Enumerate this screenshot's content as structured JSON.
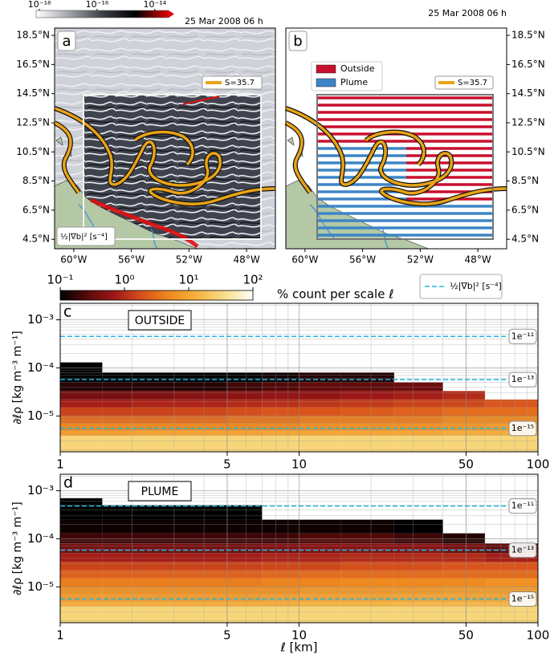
{
  "chart_data": [
    {
      "type": "map",
      "label": "a",
      "timestamp": "25 Mar 2008 06 h",
      "colorbar": {
        "colors": [
          "#ffffff",
          "#a0a4ab",
          "#3c3f46",
          "#000000",
          "#e00000"
        ],
        "lim": [
          7.7e-19,
          3e-14
        ],
        "log": true,
        "ticks": [
          {
            "value": 1e-18,
            "label": "10⁻¹⁸"
          },
          {
            "value": 1e-16,
            "label": "10⁻¹⁶"
          },
          {
            "value": 1e-14,
            "label": "10⁻¹⁴"
          }
        ],
        "label": "½|∇b|² [s⁻⁴]"
      },
      "legend": [
        {
          "name": "S=35.7",
          "color": "#e8a317"
        }
      ],
      "xlim": [
        -61.33,
        -46
      ],
      "ylim": [
        3.85,
        19.0
      ],
      "xticks": [
        {
          "value": -60,
          "label": "60°W"
        },
        {
          "value": -56,
          "label": "56°W"
        },
        {
          "value": -52,
          "label": "52°W"
        },
        {
          "value": -48,
          "label": "48°W"
        }
      ],
      "yticks": [
        {
          "value": 4.5,
          "label": "4.5°N"
        },
        {
          "value": 6.5,
          "label": "6.5°N"
        },
        {
          "value": 8.5,
          "label": "8.5°N"
        },
        {
          "value": 10.5,
          "label": "10.5°N"
        },
        {
          "value": 12.5,
          "label": "12.5°N"
        },
        {
          "value": 14.5,
          "label": "14.5°N"
        },
        {
          "value": 16.5,
          "label": "16.5°N"
        },
        {
          "value": 18.5,
          "label": "18.5°N"
        }
      ]
    },
    {
      "type": "map",
      "label": "b",
      "timestamp": "25 Mar 2008 06 h",
      "legend": [
        {
          "name": "Outside",
          "color": "#c8102e"
        },
        {
          "name": "Plume",
          "color": "#3d85c6"
        },
        {
          "name": "S=35.7",
          "color": "#e8a317"
        }
      ],
      "xlim": [
        -61.33,
        -46
      ],
      "ylim": [
        3.85,
        19.0
      ],
      "xticks": [
        {
          "value": -60,
          "label": "60°W"
        },
        {
          "value": -56,
          "label": "56°W"
        },
        {
          "value": -52,
          "label": "52°W"
        },
        {
          "value": -48,
          "label": "48°W"
        }
      ],
      "yticks": [
        {
          "value": 4.5,
          "label": "4.5°N"
        },
        {
          "value": 6.5,
          "label": "6.5°N"
        },
        {
          "value": 8.5,
          "label": "8.5°N"
        },
        {
          "value": 10.5,
          "label": "10.5°N"
        },
        {
          "value": 12.5,
          "label": "12.5°N"
        },
        {
          "value": 14.5,
          "label": "14.5°N"
        },
        {
          "value": 16.5,
          "label": "16.5°N"
        },
        {
          "value": 18.5,
          "label": "18.5°N"
        }
      ]
    },
    {
      "type": "heatmap",
      "label": "c",
      "title": "OUTSIDE",
      "ylabel": "∂ℓρ [kg m⁻³ m⁻¹]",
      "colorbar": {
        "label": "% count per scale ℓ",
        "lim": [
          0.1,
          100
        ],
        "log": true,
        "colors": [
          "#000000",
          "#5a0a0a",
          "#a01818",
          "#d8531c",
          "#f08c1e",
          "#f5b342",
          "#f7e08a",
          "#ffffff"
        ],
        "ticks": [
          {
            "value": 0.1,
            "label": "10⁻¹"
          },
          {
            "value": 1,
            "label": "10⁰"
          },
          {
            "value": 10,
            "label": "10¹"
          },
          {
            "value": 100,
            "label": "10²"
          }
        ]
      },
      "hline_legend": "½|∇b|² [s⁻⁴]",
      "hline_color": "#1fb5e0",
      "hlines": [
        {
          "value": 0.00045,
          "label": "1e⁻¹¹"
        },
        {
          "value": 5.7e-05,
          "label": "1e⁻¹³"
        },
        {
          "value": 5.5e-06,
          "label": "1e⁻¹⁵"
        }
      ],
      "xlog": true,
      "ylog": true,
      "grid": true,
      "xlim": [
        1,
        100
      ],
      "ylim": [
        1.8e-06,
        0.0022
      ],
      "xticks": [
        1,
        5,
        10,
        50,
        100
      ],
      "yticks": [
        {
          "value": 0.001,
          "label": "10⁻³"
        },
        {
          "value": 0.0001,
          "label": "10⁻⁴"
        },
        {
          "value": 1e-05,
          "label": "10⁻⁵"
        }
      ],
      "x_edges": [
        1,
        1.5,
        2,
        3,
        5,
        7,
        10,
        15,
        25,
        40,
        60,
        100
      ],
      "y_edges": [
        1.8e-06,
        3.9e-06,
        5e-06,
        7e-06,
        1e-05,
        1.5e-05,
        2.2e-05,
        3.3e-05,
        5e-05,
        8e-05,
        0.00013,
        0.00025,
        0.0005,
        0.0007
      ],
      "values": [
        [
          30,
          30,
          30,
          30,
          30,
          30,
          30,
          30,
          30,
          30,
          30
        ],
        [
          8,
          8,
          9,
          9,
          9,
          10,
          10,
          10,
          10,
          12,
          12
        ],
        [
          5,
          5,
          5,
          5,
          5,
          5,
          6,
          6,
          6,
          7,
          8
        ],
        [
          3,
          3,
          3,
          3,
          3.5,
          3.5,
          4,
          4,
          4,
          5,
          5
        ],
        [
          1.5,
          1.5,
          1.5,
          1.6,
          1.8,
          2,
          2,
          2.2,
          2.5,
          3,
          3
        ],
        [
          0.8,
          0.8,
          0.9,
          0.9,
          1,
          1.1,
          1.2,
          1.3,
          1.5,
          1.6,
          2
        ],
        [
          0.4,
          0.4,
          0.45,
          0.5,
          0.55,
          0.6,
          0.6,
          0.7,
          0.8,
          1,
          null
        ],
        [
          0.15,
          0.15,
          0.15,
          0.15,
          0.2,
          0.25,
          0.3,
          0.3,
          0.35,
          null,
          null
        ],
        [
          0.1,
          0.1,
          0.1,
          0.1,
          0.1,
          0.12,
          0.15,
          0.15,
          null,
          null,
          null
        ],
        [
          0.1,
          null,
          null,
          null,
          null,
          null,
          null,
          null,
          null,
          null,
          null
        ],
        [
          null,
          null,
          null,
          null,
          null,
          null,
          null,
          null,
          null,
          null,
          null
        ],
        [
          null,
          null,
          null,
          null,
          null,
          null,
          null,
          null,
          null,
          null,
          null
        ],
        [
          null,
          null,
          null,
          null,
          null,
          null,
          null,
          null,
          null,
          null,
          null
        ]
      ]
    },
    {
      "type": "heatmap",
      "label": "d",
      "title": "PLUME",
      "ylabel": "∂ℓρ [kg m⁻³ m⁻¹]",
      "xlabel": "ℓ [km]",
      "hline_color": "#1fb5e0",
      "hlines": [
        {
          "value": 0.00048,
          "label": "1e⁻¹¹"
        },
        {
          "value": 5.8e-05,
          "label": "1e⁻¹³"
        },
        {
          "value": 5.6e-06,
          "label": "1e⁻¹⁵"
        }
      ],
      "xlog": true,
      "ylog": true,
      "grid": true,
      "xlim": [
        1,
        100
      ],
      "ylim": [
        1.8e-06,
        0.0022
      ],
      "xticks": [
        1,
        5,
        10,
        50,
        100
      ],
      "yticks": [
        {
          "value": 0.001,
          "label": "10⁻³"
        },
        {
          "value": 0.0001,
          "label": "10⁻⁴"
        },
        {
          "value": 1e-05,
          "label": "10⁻⁵"
        }
      ],
      "x_edges": [
        1,
        1.5,
        2,
        3,
        5,
        7,
        10,
        15,
        25,
        40,
        60,
        100
      ],
      "y_edges": [
        1.8e-06,
        3.9e-06,
        5e-06,
        7e-06,
        1e-05,
        1.5e-05,
        2.2e-05,
        3.3e-05,
        5e-05,
        8e-05,
        0.00013,
        0.00025,
        0.0005,
        0.0007
      ],
      "values": [
        [
          30,
          30,
          30,
          30,
          30,
          30,
          30,
          30,
          30,
          30,
          30
        ],
        [
          12,
          12,
          12,
          12,
          12,
          12,
          14,
          14,
          15,
          15,
          15
        ],
        [
          8,
          8,
          8,
          8,
          8,
          9,
          9,
          9,
          10,
          10,
          10
        ],
        [
          6,
          6,
          6,
          6,
          6,
          6,
          7,
          7,
          7,
          8,
          8
        ],
        [
          4,
          4,
          4,
          4,
          4,
          4.5,
          4.5,
          5,
          5,
          5,
          6
        ],
        [
          2.5,
          2.5,
          2.5,
          2.5,
          2.5,
          2.8,
          3,
          3,
          3,
          3,
          3
        ],
        [
          1.5,
          1.5,
          1.5,
          1.5,
          1.5,
          1.6,
          1.6,
          1.8,
          1.8,
          2,
          2
        ],
        [
          0.8,
          0.8,
          0.8,
          0.8,
          0.8,
          0.9,
          0.9,
          1,
          1,
          1,
          0.8
        ],
        [
          0.4,
          0.4,
          0.4,
          0.4,
          0.4,
          0.45,
          0.5,
          0.5,
          0.5,
          0.4,
          0.3
        ],
        [
          0.2,
          0.2,
          0.2,
          0.2,
          0.2,
          0.2,
          0.25,
          0.25,
          0.2,
          0.15,
          null
        ],
        [
          0.12,
          0.12,
          0.12,
          0.12,
          0.12,
          0.12,
          0.12,
          0.12,
          0.1,
          null,
          null
        ],
        [
          0.1,
          0.1,
          0.1,
          0.1,
          0.1,
          null,
          null,
          null,
          null,
          null,
          null
        ],
        [
          0.1,
          null,
          null,
          null,
          null,
          null,
          null,
          null,
          null,
          null,
          null
        ]
      ]
    }
  ]
}
